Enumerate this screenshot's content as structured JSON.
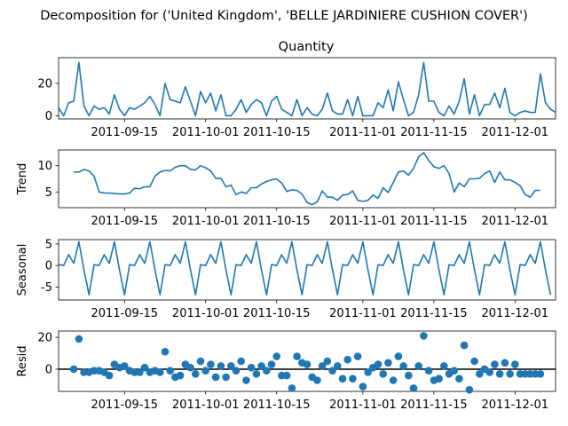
{
  "figure": {
    "suptitle": "Decomposition for ('United Kingdom', 'BELLE JARDINIERE CUSHION COVER')"
  },
  "colors": {
    "series": "#1f77b4",
    "axis": "#000000",
    "zero_line": "#000000"
  },
  "chart_data": [
    {
      "type": "line",
      "title": "Quantity",
      "ylabel": "",
      "ylim": [
        -2,
        36
      ],
      "yticks": [
        0,
        20
      ],
      "xlim": [
        "2011-09-02",
        "2011-12-09"
      ],
      "xticks": [
        "2011-09-15",
        "2011-10-01",
        "2011-10-15",
        "2011-11-01",
        "2011-11-15",
        "2011-12-01"
      ],
      "x": [
        "2011-09-02",
        "2011-09-03",
        "2011-09-04",
        "2011-09-05",
        "2011-09-06",
        "2011-09-07",
        "2011-09-08",
        "2011-09-09",
        "2011-09-10",
        "2011-09-11",
        "2011-09-12",
        "2011-09-13",
        "2011-09-14",
        "2011-09-15",
        "2011-09-16",
        "2011-09-17",
        "2011-09-18",
        "2011-09-19",
        "2011-09-20",
        "2011-09-21",
        "2011-09-22",
        "2011-09-23",
        "2011-09-24",
        "2011-09-25",
        "2011-09-26",
        "2011-09-27",
        "2011-09-28",
        "2011-09-29",
        "2011-09-30",
        "2011-10-01",
        "2011-10-02",
        "2011-10-03",
        "2011-10-04",
        "2011-10-05",
        "2011-10-06",
        "2011-10-07",
        "2011-10-08",
        "2011-10-09",
        "2011-10-10",
        "2011-10-11",
        "2011-10-12",
        "2011-10-13",
        "2011-10-14",
        "2011-10-15",
        "2011-10-16",
        "2011-10-17",
        "2011-10-18",
        "2011-10-19",
        "2011-10-20",
        "2011-10-21",
        "2011-10-22",
        "2011-10-23",
        "2011-10-24",
        "2011-10-25",
        "2011-10-26",
        "2011-10-27",
        "2011-10-28",
        "2011-10-29",
        "2011-10-30",
        "2011-10-31",
        "2011-11-01",
        "2011-11-02",
        "2011-11-03",
        "2011-11-04",
        "2011-11-05",
        "2011-11-06",
        "2011-11-07",
        "2011-11-08",
        "2011-11-09",
        "2011-11-10",
        "2011-11-11",
        "2011-11-12",
        "2011-11-13",
        "2011-11-14",
        "2011-11-15",
        "2011-11-16",
        "2011-11-17",
        "2011-11-18",
        "2011-11-19",
        "2011-11-20",
        "2011-11-21",
        "2011-11-22",
        "2011-11-23",
        "2011-11-24",
        "2011-11-25",
        "2011-11-26",
        "2011-11-27",
        "2011-11-28",
        "2011-11-29",
        "2011-11-30",
        "2011-12-01",
        "2011-12-02",
        "2011-12-03",
        "2011-12-04",
        "2011-12-05",
        "2011-12-06",
        "2011-12-07",
        "2011-12-08",
        "2011-12-09"
      ],
      "values": [
        5,
        0,
        8,
        9,
        33,
        6,
        0,
        6,
        4,
        5,
        1,
        13,
        4,
        0,
        5,
        4,
        6,
        8,
        12,
        7,
        0,
        20,
        10,
        9,
        8,
        18,
        9,
        0,
        15,
        8,
        14,
        3,
        13,
        0,
        0,
        4,
        10,
        2,
        7,
        10,
        8,
        0,
        9,
        12,
        4,
        2,
        0,
        10,
        0,
        5,
        1,
        0,
        4,
        14,
        3,
        1,
        1,
        10,
        0,
        12,
        0,
        0,
        0,
        8,
        5,
        16,
        3,
        21,
        10,
        0,
        2,
        13,
        33,
        9,
        9,
        2,
        0,
        6,
        1,
        9,
        23,
        1,
        13,
        0,
        7,
        7,
        14,
        5,
        17,
        2,
        0,
        2,
        3,
        2,
        2,
        26,
        8,
        4,
        2
      ]
    },
    {
      "type": "line",
      "title": "",
      "ylabel": "Trend",
      "ylim": [
        2,
        13
      ],
      "yticks": [
        5,
        10
      ],
      "xlim": [
        "2011-09-02",
        "2011-12-09"
      ],
      "xticks": [
        "2011-09-15",
        "2011-10-01",
        "2011-10-15",
        "2011-11-01",
        "2011-11-15",
        "2011-12-01"
      ],
      "x": [
        "2011-09-05",
        "2011-09-06",
        "2011-09-07",
        "2011-09-08",
        "2011-09-09",
        "2011-09-10",
        "2011-09-11",
        "2011-09-12",
        "2011-09-13",
        "2011-09-14",
        "2011-09-15",
        "2011-09-16",
        "2011-09-17",
        "2011-09-18",
        "2011-09-19",
        "2011-09-20",
        "2011-09-21",
        "2011-09-22",
        "2011-09-23",
        "2011-09-24",
        "2011-09-25",
        "2011-09-26",
        "2011-09-27",
        "2011-09-28",
        "2011-09-29",
        "2011-09-30",
        "2011-10-01",
        "2011-10-02",
        "2011-10-03",
        "2011-10-04",
        "2011-10-05",
        "2011-10-06",
        "2011-10-07",
        "2011-10-08",
        "2011-10-09",
        "2011-10-10",
        "2011-10-11",
        "2011-10-12",
        "2011-10-13",
        "2011-10-14",
        "2011-10-15",
        "2011-10-16",
        "2011-10-17",
        "2011-10-18",
        "2011-10-19",
        "2011-10-20",
        "2011-10-21",
        "2011-10-22",
        "2011-10-23",
        "2011-10-24",
        "2011-10-25",
        "2011-10-26",
        "2011-10-27",
        "2011-10-28",
        "2011-10-29",
        "2011-10-30",
        "2011-10-31",
        "2011-11-01",
        "2011-11-02",
        "2011-11-03",
        "2011-11-04",
        "2011-11-05",
        "2011-11-06",
        "2011-11-07",
        "2011-11-08",
        "2011-11-09",
        "2011-11-10",
        "2011-11-11",
        "2011-11-12",
        "2011-11-13",
        "2011-11-14",
        "2011-11-15",
        "2011-11-16",
        "2011-11-17",
        "2011-11-18",
        "2011-11-19",
        "2011-11-20",
        "2011-11-21",
        "2011-11-22",
        "2011-11-23",
        "2011-11-24",
        "2011-11-25",
        "2011-11-26",
        "2011-11-27",
        "2011-11-28",
        "2011-11-29",
        "2011-11-30",
        "2011-12-01",
        "2011-12-02",
        "2011-12-03",
        "2011-12-04",
        "2011-12-05",
        "2011-12-06"
      ],
      "values": [
        8.8,
        8.8,
        9.3,
        9.0,
        8.0,
        5.0,
        4.8,
        4.8,
        4.7,
        4.6,
        4.6,
        4.8,
        5.7,
        5.6,
        6.0,
        6.0,
        8.0,
        8.8,
        9.1,
        9.0,
        9.7,
        10.0,
        10.0,
        9.3,
        9.2,
        10.0,
        9.6,
        9.0,
        7.6,
        7.6,
        6.0,
        6.3,
        4.5,
        5.0,
        4.7,
        5.8,
        5.8,
        6.5,
        7.0,
        7.3,
        7.5,
        6.7,
        5.1,
        5.4,
        5.3,
        4.6,
        3.0,
        2.6,
        3.1,
        5.2,
        4.0,
        4.0,
        3.4,
        4.4,
        4.5,
        5.2,
        3.4,
        3.2,
        3.4,
        4.4,
        3.8,
        5.8,
        4.9,
        6.8,
        8.8,
        9.0,
        8.2,
        9.5,
        11.7,
        12.5,
        11.0,
        9.8,
        9.5,
        10.0,
        8.5,
        5.0,
        6.7,
        6.0,
        7.5,
        7.5,
        7.6,
        8.5,
        9.0,
        6.8,
        8.8,
        7.3,
        7.3,
        6.8,
        6.2,
        4.5,
        4.0,
        5.3,
        5.3
      ]
    },
    {
      "type": "line",
      "title": "",
      "ylabel": "Seasonal",
      "ylim": [
        -8,
        6
      ],
      "yticks": [
        -5,
        0,
        5
      ],
      "xlim": [
        "2011-09-02",
        "2011-12-09"
      ],
      "xticks": [
        "2011-09-15",
        "2011-10-01",
        "2011-10-15",
        "2011-11-01",
        "2011-11-15",
        "2011-12-01"
      ],
      "x0": "2011-09-02",
      "period_pattern": [
        0.2,
        0.0,
        2.5,
        0.5,
        5.5,
        -1.0,
        -6.8
      ],
      "periods": 14,
      "values": [
        0.2,
        0.0,
        2.5,
        0.5,
        5.5,
        -1.0,
        -6.8,
        0.2,
        0.0,
        2.5,
        0.5,
        5.5,
        -1.0,
        -6.8,
        0.2,
        0.0,
        2.5,
        0.5,
        5.5,
        -1.0,
        -6.8,
        0.2,
        0.0,
        2.5,
        0.5,
        5.5,
        -1.0,
        -6.8,
        0.2,
        0.0,
        2.5,
        0.5,
        5.5,
        -1.0,
        -6.8,
        0.2,
        0.0,
        2.5,
        0.5,
        5.5,
        -1.0,
        -6.8,
        0.2,
        0.0,
        2.5,
        0.5,
        5.5,
        -1.0,
        -6.8,
        0.2,
        0.0,
        2.5,
        0.5,
        5.5,
        -1.0,
        -6.8,
        0.2,
        0.0,
        2.5,
        0.5,
        5.5,
        -1.0,
        -6.8,
        0.2,
        0.0,
        2.5,
        0.5,
        5.5,
        -1.0,
        -6.8,
        0.2,
        0.0,
        2.5,
        0.5,
        5.5,
        -1.0,
        -6.8,
        0.2,
        0.0,
        2.5,
        0.5,
        5.5,
        -1.0,
        -6.8,
        0.2,
        0.0,
        2.5,
        0.5,
        5.5,
        -1.0,
        -6.8,
        0.2,
        0.0,
        2.5,
        0.5,
        5.5,
        -1.0,
        -6.8
      ]
    },
    {
      "type": "scatter",
      "title": "",
      "ylabel": "Resid",
      "ylim": [
        -14,
        24
      ],
      "yticks": [
        0,
        20
      ],
      "xlim": [
        "2011-09-02",
        "2011-12-09"
      ],
      "xticks": [
        "2011-09-15",
        "2011-10-01",
        "2011-10-15",
        "2011-11-01",
        "2011-11-15",
        "2011-12-01"
      ],
      "zero_line": true,
      "x": [
        "2011-09-05",
        "2011-09-06",
        "2011-09-07",
        "2011-09-08",
        "2011-09-09",
        "2011-09-10",
        "2011-09-11",
        "2011-09-12",
        "2011-09-13",
        "2011-09-14",
        "2011-09-15",
        "2011-09-16",
        "2011-09-17",
        "2011-09-18",
        "2011-09-19",
        "2011-09-20",
        "2011-09-21",
        "2011-09-22",
        "2011-09-23",
        "2011-09-24",
        "2011-09-25",
        "2011-09-26",
        "2011-09-27",
        "2011-09-28",
        "2011-09-29",
        "2011-09-30",
        "2011-10-01",
        "2011-10-02",
        "2011-10-03",
        "2011-10-04",
        "2011-10-05",
        "2011-10-06",
        "2011-10-07",
        "2011-10-08",
        "2011-10-09",
        "2011-10-10",
        "2011-10-11",
        "2011-10-12",
        "2011-10-13",
        "2011-10-14",
        "2011-10-15",
        "2011-10-16",
        "2011-10-17",
        "2011-10-18",
        "2011-10-19",
        "2011-10-20",
        "2011-10-21",
        "2011-10-22",
        "2011-10-23",
        "2011-10-24",
        "2011-10-25",
        "2011-10-26",
        "2011-10-27",
        "2011-10-28",
        "2011-10-29",
        "2011-10-30",
        "2011-10-31",
        "2011-11-01",
        "2011-11-02",
        "2011-11-03",
        "2011-11-04",
        "2011-11-05",
        "2011-11-06",
        "2011-11-07",
        "2011-11-08",
        "2011-11-09",
        "2011-11-10",
        "2011-11-11",
        "2011-11-12",
        "2011-11-13",
        "2011-11-14",
        "2011-11-15",
        "2011-11-16",
        "2011-11-17",
        "2011-11-18",
        "2011-11-19",
        "2011-11-20",
        "2011-11-21",
        "2011-11-22",
        "2011-11-23",
        "2011-11-24",
        "2011-11-25",
        "2011-11-26",
        "2011-11-27",
        "2011-11-28",
        "2011-11-29",
        "2011-11-30",
        "2011-12-01",
        "2011-12-02",
        "2011-12-03",
        "2011-12-04",
        "2011-12-05",
        "2011-12-06"
      ],
      "values": [
        0,
        19,
        -2,
        -2,
        -1,
        -1,
        -2,
        -4,
        3,
        1,
        2,
        -1,
        -2,
        -2,
        1,
        -2,
        -1,
        -2,
        11,
        -1,
        -5,
        -4,
        3,
        1,
        -3,
        5,
        -1,
        3,
        -5,
        2,
        -5,
        2,
        -1,
        5,
        -7,
        1,
        -3,
        2,
        -1,
        3,
        8,
        -4,
        -4,
        -12,
        8,
        4,
        3,
        -5,
        -7,
        2,
        5,
        -1,
        2,
        -6,
        6,
        -6,
        8,
        -11,
        -2,
        1,
        3,
        -3,
        4,
        -7,
        8,
        2,
        -4,
        -12,
        2,
        21,
        -1,
        -7,
        -6,
        2,
        -3,
        -1,
        -6,
        15,
        -13,
        5,
        -3,
        0,
        -2,
        3,
        -3,
        4,
        -3,
        3,
        -3,
        -3,
        -3,
        -3,
        -3
      ]
    }
  ]
}
